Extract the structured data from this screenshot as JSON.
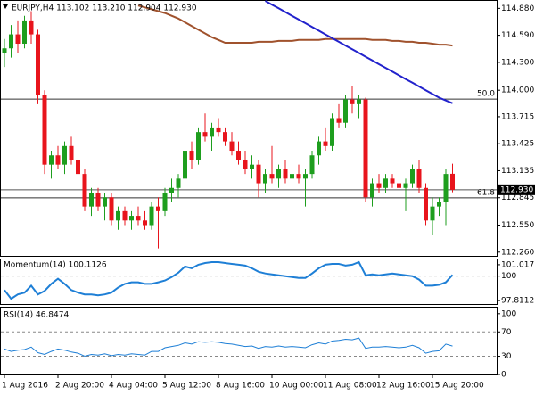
{
  "chart_data": [
    {
      "type": "candlestick",
      "title": "EURJPY,H4  113.102 113.210 112.904 112.930",
      "categories": [
        "1 Aug 2016",
        null,
        null,
        null,
        null,
        null,
        null,
        null,
        "2 Aug 20:00",
        null,
        null,
        null,
        null,
        null,
        null,
        null,
        "4 Aug 04:00",
        null,
        null,
        null,
        null,
        null,
        null,
        null,
        "5 Aug 12:00",
        null,
        null,
        null,
        null,
        null,
        null,
        null,
        "8 Aug 16:00",
        null,
        null,
        null,
        null,
        null,
        null,
        null,
        "10 Aug 00:00",
        null,
        null,
        null,
        null,
        null,
        null,
        null,
        "11 Aug 08:00",
        null,
        null,
        null,
        null,
        null,
        null,
        null,
        "12 Aug 16:00",
        null,
        null,
        null,
        null,
        null,
        null,
        null,
        "15 Aug 20:00",
        null,
        null,
        null
      ],
      "open": [
        114.4,
        114.45,
        114.6,
        114.5,
        114.75,
        114.6,
        113.95,
        113.2,
        113.3,
        113.2,
        113.4,
        113.25,
        113.1,
        112.75,
        112.9,
        112.75,
        112.85,
        112.6,
        112.7,
        112.6,
        112.65,
        112.6,
        112.55,
        112.75,
        112.7,
        112.9,
        112.95,
        113.05,
        113.35,
        113.25,
        113.55,
        113.5,
        113.6,
        113.55,
        113.45,
        113.35,
        113.25,
        113.15,
        113.2,
        113.0,
        113.1,
        113.05,
        113.15,
        113.05,
        113.1,
        113.05,
        113.1,
        113.3,
        113.45,
        113.4,
        113.7,
        113.65,
        113.9,
        113.85,
        113.9,
        112.85,
        113.0,
        112.95,
        113.05,
        113.0,
        112.95,
        113.0,
        113.15,
        112.95,
        112.6,
        112.75,
        112.8,
        113.102
      ],
      "high": [
        114.55,
        114.7,
        114.75,
        114.8,
        114.85,
        114.65,
        114.0,
        113.35,
        113.4,
        113.45,
        113.5,
        113.35,
        113.15,
        112.95,
        112.95,
        112.9,
        112.9,
        112.75,
        112.75,
        112.7,
        112.75,
        112.7,
        112.8,
        112.85,
        112.95,
        113.05,
        113.1,
        113.4,
        113.45,
        113.6,
        113.75,
        113.65,
        113.7,
        113.6,
        113.55,
        113.45,
        113.35,
        113.3,
        113.25,
        113.15,
        113.4,
        113.2,
        113.25,
        113.15,
        113.2,
        113.15,
        113.35,
        113.5,
        113.6,
        113.75,
        113.85,
        113.95,
        114.05,
        113.95,
        113.92,
        113.05,
        113.1,
        113.1,
        113.1,
        113.15,
        113.05,
        113.2,
        113.25,
        113.0,
        112.85,
        112.85,
        113.15,
        113.21
      ],
      "low": [
        114.25,
        114.35,
        114.4,
        114.45,
        114.5,
        113.85,
        113.1,
        113.05,
        113.15,
        113.1,
        113.2,
        113.05,
        112.7,
        112.65,
        112.7,
        112.6,
        112.55,
        112.5,
        112.55,
        112.5,
        112.55,
        112.5,
        112.5,
        112.3,
        112.65,
        112.8,
        112.85,
        113.0,
        113.15,
        113.2,
        113.45,
        113.35,
        113.5,
        113.4,
        113.3,
        113.2,
        113.1,
        113.05,
        112.85,
        112.9,
        113.0,
        112.95,
        113.0,
        112.95,
        113.0,
        112.75,
        113.05,
        113.2,
        113.35,
        113.35,
        113.6,
        113.6,
        113.75,
        113.7,
        112.8,
        112.75,
        112.9,
        112.9,
        112.95,
        112.9,
        112.7,
        112.95,
        112.9,
        112.55,
        112.45,
        112.65,
        112.55,
        112.904
      ],
      "close": [
        114.45,
        114.6,
        114.5,
        114.75,
        114.6,
        113.95,
        113.2,
        113.3,
        113.2,
        113.4,
        113.25,
        113.1,
        112.75,
        112.9,
        112.75,
        112.85,
        112.6,
        112.7,
        112.6,
        112.65,
        112.6,
        112.55,
        112.75,
        112.7,
        112.9,
        112.95,
        113.05,
        113.35,
        113.25,
        113.55,
        113.5,
        113.6,
        113.55,
        113.45,
        113.35,
        113.25,
        113.15,
        113.2,
        113.0,
        113.1,
        113.05,
        113.15,
        113.05,
        113.1,
        113.05,
        113.1,
        113.3,
        113.45,
        113.4,
        113.7,
        113.65,
        113.9,
        113.85,
        113.9,
        112.85,
        113.0,
        112.95,
        113.05,
        113.0,
        112.95,
        113.0,
        113.15,
        112.95,
        112.6,
        112.75,
        112.8,
        113.1,
        112.93
      ],
      "up_color": "#1e9e1e",
      "down_color": "#e8141c",
      "lines": [
        {
          "color": "#a0522d",
          "values": [
            null,
            null,
            null,
            null,
            null,
            null,
            null,
            null,
            null,
            null,
            null,
            null,
            null,
            null,
            null,
            null,
            null,
            null,
            null,
            null,
            114.91,
            114.89,
            114.87,
            114.85,
            114.83,
            114.8,
            114.77,
            114.73,
            114.69,
            114.65,
            114.61,
            114.57,
            114.54,
            114.51,
            114.51,
            114.51,
            114.51,
            114.51,
            114.52,
            114.52,
            114.52,
            114.53,
            114.53,
            114.53,
            114.54,
            114.54,
            114.54,
            114.54,
            114.55,
            114.55,
            114.55,
            114.55,
            114.55,
            114.55,
            114.55,
            114.54,
            114.54,
            114.54,
            114.53,
            114.53,
            114.52,
            114.52,
            114.51,
            114.51,
            114.5,
            114.49,
            114.49,
            114.48
          ]
        },
        {
          "color": "#2222cc",
          "values": [
            null,
            null,
            null,
            null,
            null,
            null,
            null,
            null,
            null,
            null,
            null,
            null,
            null,
            null,
            null,
            null,
            null,
            null,
            null,
            null,
            null,
            null,
            null,
            null,
            null,
            null,
            null,
            null,
            null,
            null,
            null,
            null,
            null,
            null,
            null,
            null,
            null,
            null,
            null,
            114.96,
            114.92,
            114.88,
            114.84,
            114.8,
            114.76,
            114.72,
            114.68,
            114.64,
            114.6,
            114.56,
            114.52,
            114.48,
            114.44,
            114.4,
            114.36,
            114.32,
            114.28,
            114.24,
            114.2,
            114.16,
            114.12,
            114.08,
            114.04,
            114.0,
            113.96,
            113.92,
            113.89,
            113.86
          ]
        }
      ],
      "levels": [
        {
          "value": 113.905,
          "label": "50.0"
        },
        {
          "value": 112.844,
          "label": "61.8"
        }
      ],
      "last_price": {
        "value": 112.93,
        "label": "112.930"
      },
      "ylim": [
        112.21,
        114.96
      ],
      "yticks": [
        {
          "value": 114.88,
          "label": "114.880"
        },
        {
          "value": 114.59,
          "label": "114.590"
        },
        {
          "value": 114.3,
          "label": "114.300"
        },
        {
          "value": 114.0,
          "label": "114.000"
        },
        113.715,
        113.425,
        113.135,
        112.845,
        {
          "value": 112.55,
          "label": "112.550"
        },
        {
          "value": 112.26,
          "label": "112.260"
        }
      ]
    },
    {
      "type": "line",
      "title": "Momentum(14) 100.1126",
      "color": "#1e7fd6",
      "values": [
        98.75,
        97.97,
        98.36,
        98.52,
        99.14,
        98.36,
        98.67,
        99.3,
        99.77,
        99.3,
        98.75,
        98.52,
        98.36,
        98.36,
        98.28,
        98.36,
        98.52,
        98.98,
        99.3,
        99.45,
        99.45,
        99.3,
        99.3,
        99.45,
        99.61,
        99.92,
        100.31,
        100.86,
        100.7,
        101.02,
        101.17,
        101.25,
        101.25,
        101.17,
        101.09,
        101.02,
        100.94,
        100.7,
        100.39,
        100.24,
        100.16,
        100.08,
        100.0,
        99.92,
        99.84,
        99.84,
        100.24,
        100.7,
        101.02,
        101.09,
        101.09,
        100.94,
        101.02,
        101.25,
        100.08,
        100.16,
        100.08,
        100.16,
        100.24,
        100.16,
        100.08,
        100.0,
        99.69,
        99.14,
        99.14,
        99.22,
        99.45,
        100.1126
      ],
      "ref_lines": [
        100
      ],
      "ylim": [
        97.42,
        101.49
      ],
      "yticks": [
        101.0171,
        100,
        97.8112
      ]
    },
    {
      "type": "line",
      "title": "RSI(14) 46.8474",
      "color": "#1e7fd6",
      "values": [
        42,
        38,
        40,
        41,
        45,
        36,
        33,
        38,
        42,
        40,
        37,
        35,
        30,
        33,
        32,
        34,
        31,
        33,
        32,
        34,
        33,
        32,
        38,
        38,
        44,
        46,
        48,
        52,
        50,
        54,
        53,
        54,
        53,
        51,
        50,
        48,
        46,
        47,
        43,
        46,
        45,
        47,
        45,
        46,
        45,
        44,
        49,
        52,
        50,
        55,
        56,
        58,
        57,
        60,
        43,
        45,
        45,
        46,
        45,
        44,
        45,
        48,
        44,
        35,
        38,
        39,
        50,
        46.8474
      ],
      "ref_lines": [
        30,
        70
      ],
      "ylim": [
        0,
        110
      ],
      "yticks": [
        0,
        30,
        70,
        100
      ]
    }
  ]
}
